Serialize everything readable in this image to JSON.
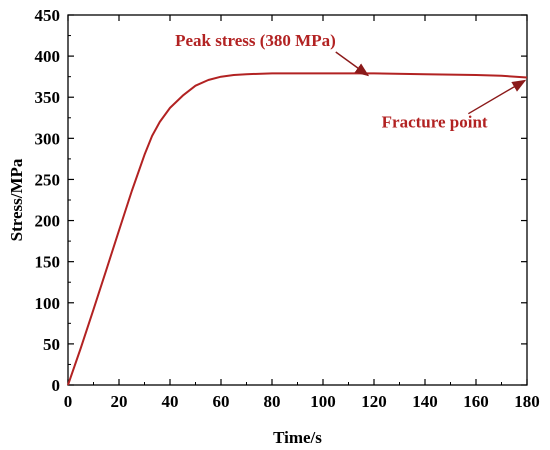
{
  "chart_data": {
    "type": "line",
    "xlabel": "Time/s",
    "ylabel": "Stress/MPa",
    "xlim": [
      0,
      180
    ],
    "ylim": [
      0,
      450
    ],
    "xticks": [
      0,
      20,
      40,
      60,
      80,
      100,
      120,
      140,
      160,
      180
    ],
    "yticks": [
      0,
      50,
      100,
      150,
      200,
      250,
      300,
      350,
      400,
      450
    ],
    "grid": false,
    "legend": "none",
    "series": [
      {
        "color": "#b22222",
        "x": [
          0,
          5,
          10,
          15,
          20,
          25,
          30,
          33,
          36,
          40,
          45,
          50,
          55,
          60,
          65,
          70,
          80,
          100,
          120,
          140,
          160,
          170,
          180
        ],
        "y": [
          0,
          45,
          92,
          140,
          188,
          236,
          280,
          303,
          320,
          337,
          352,
          364,
          371,
          375,
          377,
          378,
          379,
          379,
          379,
          378,
          377,
          376,
          374
        ]
      }
    ],
    "annotations": [
      {
        "text": "Peak stress (380 MPa)",
        "target": [
          120,
          379
        ],
        "color": "#b22222"
      },
      {
        "text": "Fracture point",
        "target": [
          180,
          374
        ],
        "color": "#b22222"
      }
    ]
  }
}
